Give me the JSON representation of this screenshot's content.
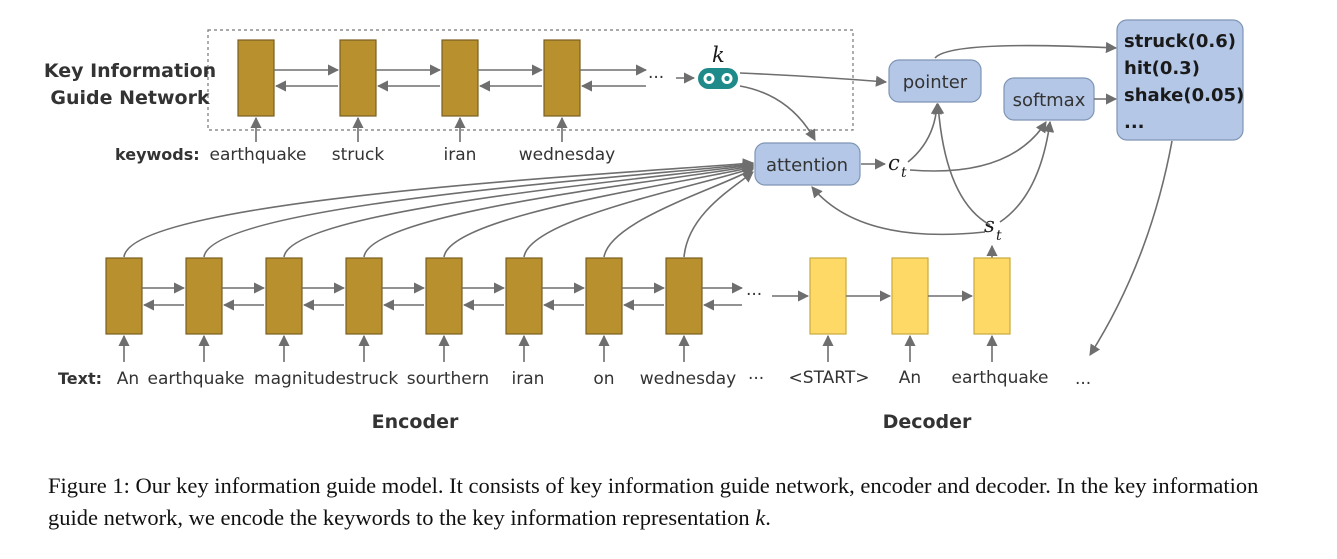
{
  "kign": {
    "title_line1": "Key Information",
    "title_line2": "Guide Network",
    "keywords_label": "keywods:",
    "keywords": [
      "earthquake",
      "struck",
      "iran",
      "wednesday"
    ],
    "ellipsis": "···",
    "k_symbol": "k"
  },
  "nodes": {
    "attention": "attention",
    "pointer": "pointer",
    "softmax": "softmax",
    "c_symbol": "c",
    "c_sub": "t",
    "s_symbol": "s",
    "s_sub": "t"
  },
  "output_dist": [
    "struck(0.6)",
    "hit(0.3)",
    "shake(0.05)",
    "..."
  ],
  "encoder": {
    "text_label": "Text:",
    "words": [
      "An",
      "earthquake",
      "magnitude",
      "struck",
      "sourthern",
      "iran",
      "on",
      "wednesday"
    ],
    "ellipsis": "···",
    "title": "Encoder"
  },
  "decoder": {
    "words": [
      "<START>",
      "An",
      "earthquake"
    ],
    "trailing": "...",
    "ellipsis": "···",
    "title": "Decoder"
  },
  "caption": {
    "prefix": "Figure 1: Our key information guide model. It consists of key information guide network, encoder and decoder. In the key information guide network, we encode the keywords to the key information representation ",
    "k": "k",
    "suffix": "."
  },
  "colors": {
    "encoder_cell": "#b8902e",
    "decoder_cell": "#ffd966",
    "node_fill": "#b4c7e7",
    "node_stroke": "#7f95b5",
    "k_icon": "#1f8a8a"
  }
}
